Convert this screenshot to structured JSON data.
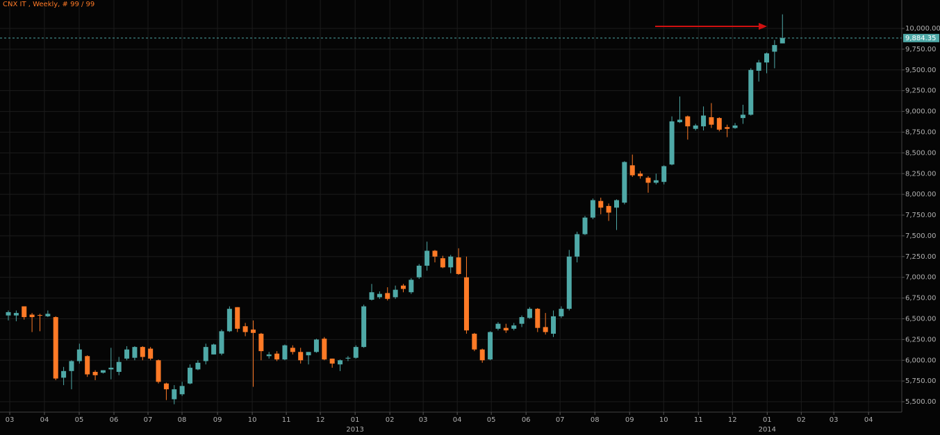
{
  "chart_data": {
    "type": "candlestick",
    "title": "CNX IT , Weekly, # 99 / 99",
    "up_color": "#4fa9a7",
    "down_color": "#ff7a26",
    "grid": true,
    "categories": [
      null,
      null,
      null,
      null,
      null,
      null,
      null,
      null,
      null,
      null,
      null,
      null,
      null,
      null,
      null,
      null,
      null,
      null,
      null,
      null,
      null,
      null,
      null,
      null,
      null,
      null,
      null,
      null,
      null,
      null,
      null,
      null,
      null,
      null,
      null,
      null,
      null,
      null,
      null,
      null,
      null,
      null,
      null,
      null,
      null,
      null,
      null,
      null,
      null,
      null,
      null,
      null,
      null,
      null,
      null,
      null,
      null,
      null,
      null,
      null,
      null,
      null,
      null,
      null,
      null,
      null,
      null,
      null,
      null,
      null,
      null,
      null,
      null,
      null,
      null,
      null,
      null,
      null,
      null,
      null,
      null,
      null,
      null,
      null,
      null,
      null,
      null,
      null,
      null,
      null,
      null,
      null,
      null,
      null,
      null,
      null,
      null,
      null,
      null
    ],
    "open": [
      6540,
      6540,
      6650,
      6550,
      6545,
      6530,
      6520,
      5790,
      5870,
      5990,
      6050,
      5860,
      5850,
      5890,
      5860,
      6020,
      6030,
      6160,
      6140,
      6000,
      5720,
      5530,
      5590,
      5720,
      5890,
      5990,
      6070,
      6080,
      6350,
      6640,
      6410,
      6370,
      6320,
      6050,
      6080,
      6010,
      6150,
      6100,
      6060,
      6100,
      6260,
      6020,
      5950,
      6020,
      6030,
      6160,
      6730,
      6760,
      6810,
      6760,
      6900,
      6820,
      7000,
      7140,
      7320,
      7230,
      7120,
      7240,
      7000,
      6320,
      6130,
      6010,
      6380,
      6390,
      6380,
      6440,
      6510,
      6620,
      6400,
      6320,
      6530,
      6620,
      7250,
      7520,
      7720,
      7920,
      7860,
      7840,
      7900,
      8350,
      8250,
      8200,
      8140,
      8150,
      8360,
      8870,
      8940,
      8790,
      8820,
      8930,
      8920,
      8810,
      8800,
      8920,
      8960,
      9490,
      9590,
      9720,
      9820
    ],
    "high": [
      6600,
      6600,
      6650,
      6570,
      6560,
      6600,
      6530,
      5920,
      6000,
      6200,
      6060,
      5880,
      5880,
      6150,
      6040,
      6170,
      6170,
      6170,
      6160,
      6010,
      5730,
      5700,
      5740,
      5950,
      6000,
      6200,
      6200,
      6370,
      6650,
      6640,
      6450,
      6480,
      6330,
      6100,
      6110,
      6190,
      6180,
      6150,
      6100,
      6260,
      6280,
      6020,
      6010,
      6050,
      6180,
      6670,
      6920,
      6830,
      6880,
      6900,
      6920,
      6990,
      7160,
      7430,
      7330,
      7260,
      7270,
      7350,
      7250,
      6330,
      6140,
      6350,
      6460,
      6440,
      6450,
      6540,
      6640,
      6630,
      6570,
      6600,
      6650,
      7330,
      7550,
      7740,
      7950,
      7960,
      7890,
      7940,
      8400,
      8480,
      8280,
      8220,
      8250,
      8350,
      8940,
      9180,
      8950,
      8850,
      9060,
      9100,
      8930,
      8840,
      8860,
      9080,
      9520,
      9620,
      9710,
      9860,
      10170
    ],
    "low": [
      6480,
      6470,
      6490,
      6340,
      6350,
      6520,
      5760,
      5700,
      5650,
      5960,
      5800,
      5760,
      5840,
      5770,
      5820,
      6000,
      6000,
      6000,
      6000,
      5720,
      5520,
      5470,
      5570,
      5710,
      5880,
      5950,
      6070,
      6060,
      6340,
      6340,
      6290,
      5680,
      6000,
      6020,
      5990,
      6000,
      6070,
      5960,
      5950,
      6090,
      6000,
      5910,
      5870,
      5990,
      6020,
      6150,
      6720,
      6740,
      6720,
      6740,
      6820,
      6800,
      6980,
      7080,
      7180,
      7110,
      7050,
      7030,
      6320,
      6110,
      5970,
      6000,
      6360,
      6330,
      6360,
      6400,
      6500,
      6340,
      6310,
      6280,
      6510,
      6600,
      7180,
      7510,
      7700,
      7760,
      7680,
      7570,
      7880,
      8210,
      8190,
      8020,
      8120,
      8120,
      8350,
      8860,
      8660,
      8770,
      8770,
      8800,
      8760,
      8690,
      8790,
      8850,
      8950,
      9360,
      9460,
      9520,
      9820
    ],
    "close": [
      6580,
      6570,
      6520,
      6520,
      6540,
      6560,
      5780,
      5870,
      5990,
      6130,
      5830,
      5820,
      5880,
      5910,
      5980,
      6130,
      6160,
      6040,
      6020,
      5740,
      5650,
      5650,
      5690,
      5910,
      5970,
      6160,
      6190,
      6350,
      6620,
      6380,
      6340,
      6330,
      6110,
      6070,
      6010,
      6180,
      6100,
      6000,
      6100,
      6250,
      6010,
      5960,
      6000,
      6030,
      6160,
      6650,
      6820,
      6800,
      6740,
      6850,
      6860,
      6970,
      7140,
      7320,
      7250,
      7120,
      7250,
      7040,
      6360,
      6130,
      6000,
      6340,
      6440,
      6360,
      6420,
      6520,
      6620,
      6390,
      6340,
      6530,
      6620,
      7250,
      7520,
      7720,
      7930,
      7840,
      7780,
      7930,
      8390,
      8230,
      8220,
      8140,
      8170,
      8340,
      8880,
      8900,
      8820,
      8830,
      8950,
      8840,
      8780,
      8790,
      8830,
      8960,
      9500,
      9590,
      9700,
      9800,
      9884.35
    ],
    "last_price": {
      "value": 9884.35,
      "label": "9,884.35"
    },
    "ylim": [
      5375,
      10343
    ],
    "yticks": [
      {
        "value": 5500,
        "label": "5,500.00"
      },
      {
        "value": 5750,
        "label": "5,750.00"
      },
      {
        "value": 6000,
        "label": "6,000.00"
      },
      {
        "value": 6250,
        "label": "6,250.00"
      },
      {
        "value": 6500,
        "label": "6,500.00"
      },
      {
        "value": 6750,
        "label": "6,750.00"
      },
      {
        "value": 7000,
        "label": "7,000.00"
      },
      {
        "value": 7250,
        "label": "7,250.00"
      },
      {
        "value": 7500,
        "label": "7,500.00"
      },
      {
        "value": 7750,
        "label": "7,750.00"
      },
      {
        "value": 8000,
        "label": "8,000.00"
      },
      {
        "value": 8250,
        "label": "8,250.00"
      },
      {
        "value": 8500,
        "label": "8,500.00"
      },
      {
        "value": 8750,
        "label": "8,750.00"
      },
      {
        "value": 9000,
        "label": "9,000.00"
      },
      {
        "value": 9250,
        "label": "9,250.00"
      },
      {
        "value": 9500,
        "label": "9,500.00"
      },
      {
        "value": 9750,
        "label": "9,750.00"
      },
      {
        "value": 10000,
        "label": "10,000.00"
      }
    ],
    "xticks": [
      {
        "value": 0.18,
        "label": "03"
      },
      {
        "value": 4.57,
        "label": "04"
      },
      {
        "value": 8.97,
        "label": "05"
      },
      {
        "value": 13.37,
        "label": "06"
      },
      {
        "value": 17.68,
        "label": "07"
      },
      {
        "value": 21.99,
        "label": "08"
      },
      {
        "value": 26.48,
        "label": "09"
      },
      {
        "value": 30.88,
        "label": "10"
      },
      {
        "value": 35.19,
        "label": "11"
      },
      {
        "value": 39.5,
        "label": "12"
      },
      {
        "value": 43.9,
        "label": "01"
      },
      {
        "value": 48.3,
        "label": "02"
      },
      {
        "value": 52.52,
        "label": "03"
      },
      {
        "value": 56.83,
        "label": "04"
      },
      {
        "value": 61.14,
        "label": "05"
      },
      {
        "value": 65.54,
        "label": "06"
      },
      {
        "value": 69.85,
        "label": "07"
      },
      {
        "value": 74.25,
        "label": "08"
      },
      {
        "value": 78.65,
        "label": "09"
      },
      {
        "value": 82.96,
        "label": "10"
      },
      {
        "value": 87.36,
        "label": "11"
      },
      {
        "value": 91.67,
        "label": "12"
      },
      {
        "value": 96.07,
        "label": "01"
      },
      {
        "value": 100.38,
        "label": "02"
      },
      {
        "value": 104.5,
        "label": "03"
      },
      {
        "value": 108.9,
        "label": "04"
      }
    ],
    "year_labels": [
      {
        "value": 43.9,
        "label": "2013"
      },
      {
        "value": 96.07,
        "label": "2014"
      }
    ]
  }
}
